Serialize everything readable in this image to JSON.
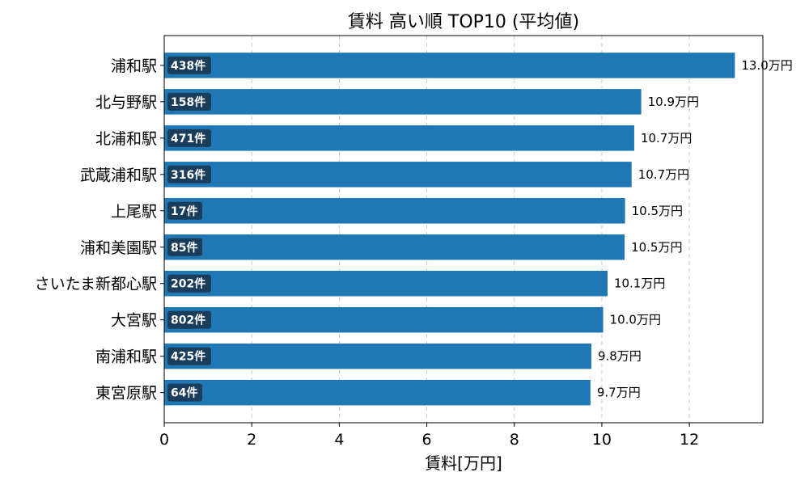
{
  "chart_data": {
    "type": "bar",
    "orientation": "horizontal",
    "title": "賃料 高い順 TOP10 (平均値)",
    "xlabel": "賃料[万円]",
    "ylabel": "",
    "xlim": [
      0,
      13.68
    ],
    "xticks": [
      0,
      2,
      4,
      6,
      8,
      10,
      12
    ],
    "grid": "x-dashed",
    "categories": [
      "浦和駅",
      "北与野駅",
      "北浦和駅",
      "武蔵浦和駅",
      "上尾駅",
      "浦和美園駅",
      "さいたま新都心駅",
      "大宮駅",
      "南浦和駅",
      "東宮原駅"
    ],
    "values": [
      13.04,
      10.9,
      10.74,
      10.68,
      10.53,
      10.52,
      10.13,
      10.03,
      9.76,
      9.74
    ],
    "value_labels": [
      "13.0万円",
      "10.9万円",
      "10.7万円",
      "10.7万円",
      "10.5万円",
      "10.5万円",
      "10.1万円",
      "10.0万円",
      "9.8万円",
      "9.7万円"
    ],
    "counts": [
      "438件",
      "158件",
      "471件",
      "316件",
      "17件",
      "85件",
      "202件",
      "802件",
      "425件",
      "64件"
    ],
    "bar_color": "#1f77b4",
    "count_badge_color": "#1a3d5c"
  }
}
